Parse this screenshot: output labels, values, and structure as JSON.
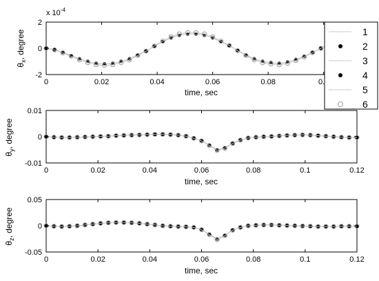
{
  "chart_data": [
    {
      "type": "scatter",
      "xlabel": "time, sec",
      "ylabel": "θx, degree",
      "ylabel_main": "θ",
      "ylabel_sub": "x",
      "ylabel_rest": ", degree",
      "exponent": "x 10⁻⁴",
      "exponent_text": "x 10",
      "exponent_power": "-4",
      "xlim": [
        0,
        0.112
      ],
      "ylim": [
        -2,
        2
      ],
      "xticks": [
        0,
        0.02,
        0.04,
        0.06,
        0.08,
        0.1
      ],
      "xtick_labels": [
        "0",
        "0.02",
        "0.04",
        "0.06",
        "0.08",
        "0.1"
      ],
      "yticks": [
        -2,
        0,
        2
      ],
      "ytick_labels": [
        "-2",
        "0",
        "2"
      ],
      "x": [
        0,
        0.003,
        0.006,
        0.009,
        0.012,
        0.015,
        0.018,
        0.021,
        0.024,
        0.027,
        0.03,
        0.033,
        0.036,
        0.039,
        0.042,
        0.045,
        0.048,
        0.051,
        0.054,
        0.057,
        0.06,
        0.063,
        0.066,
        0.069,
        0.072,
        0.075,
        0.078,
        0.081,
        0.084,
        0.087,
        0.09,
        0.093,
        0.096,
        0.099,
        0.102,
        0.105,
        0.108,
        0.111
      ],
      "series": [
        {
          "values": [
            0,
            -0.1,
            -0.3,
            -0.55,
            -0.8,
            -1.0,
            -1.15,
            -1.2,
            -1.15,
            -1.0,
            -0.8,
            -0.5,
            -0.2,
            0.15,
            0.5,
            0.8,
            1.0,
            1.1,
            1.1,
            1.0,
            0.8,
            0.5,
            0.2,
            -0.15,
            -0.5,
            -0.8,
            -1.0,
            -1.1,
            -1.15,
            -1.05,
            -0.85,
            -0.6,
            -0.3,
            0.0,
            0.3,
            0.55,
            0.8,
            1.0
          ]
        },
        {
          "values": [
            0,
            -0.1,
            -0.3,
            -0.55,
            -0.8,
            -1.0,
            -1.15,
            -1.2,
            -1.15,
            -1.0,
            -0.8,
            -0.5,
            -0.2,
            0.15,
            0.5,
            0.8,
            1.0,
            1.1,
            1.1,
            1.0,
            0.8,
            0.5,
            0.2,
            -0.15,
            -0.5,
            -0.8,
            -1.0,
            -1.1,
            -1.15,
            -1.05,
            -0.85,
            -0.6,
            -0.3,
            0.0,
            0.3,
            0.55,
            0.8,
            1.0
          ]
        },
        {
          "values": [
            0,
            -0.1,
            -0.3,
            -0.55,
            -0.8,
            -1.0,
            -1.15,
            -1.2,
            -1.15,
            -1.0,
            -0.8,
            -0.5,
            -0.2,
            0.15,
            0.5,
            0.8,
            1.0,
            1.1,
            1.1,
            1.0,
            0.8,
            0.5,
            0.2,
            -0.15,
            -0.5,
            -0.8,
            -1.0,
            -1.1,
            -1.15,
            -1.05,
            -0.85,
            -0.6,
            -0.3,
            0.0,
            0.3,
            0.55,
            0.8,
            1.0
          ]
        },
        {
          "values": [
            0,
            -0.1,
            -0.3,
            -0.55,
            -0.8,
            -1.0,
            -1.15,
            -1.2,
            -1.15,
            -1.0,
            -0.8,
            -0.5,
            -0.2,
            0.15,
            0.5,
            0.8,
            1.0,
            1.1,
            1.1,
            1.0,
            0.8,
            0.5,
            0.2,
            -0.15,
            -0.5,
            -0.8,
            -1.0,
            -1.1,
            -1.15,
            -1.05,
            -0.85,
            -0.6,
            -0.3,
            0.0,
            0.3,
            0.55,
            0.8,
            1.0
          ]
        },
        {
          "values": [
            0,
            -0.12,
            -0.35,
            -0.6,
            -0.88,
            -1.1,
            -1.25,
            -1.3,
            -1.25,
            -1.1,
            -0.88,
            -0.55,
            -0.22,
            0.18,
            0.55,
            0.88,
            1.1,
            1.2,
            1.2,
            1.1,
            0.88,
            0.55,
            0.22,
            -0.18,
            -0.55,
            -0.88,
            -1.1,
            -1.2,
            -1.25,
            -1.15,
            -0.93,
            -0.66,
            -0.33,
            0.0,
            0.33,
            0.6,
            0.88,
            1.1
          ]
        },
        {
          "values": [
            0,
            -0.12,
            -0.35,
            -0.6,
            -0.88,
            -1.1,
            -1.25,
            -1.3,
            -1.25,
            -1.1,
            -0.88,
            -0.55,
            -0.22,
            0.18,
            0.55,
            0.88,
            1.1,
            1.2,
            1.2,
            1.1,
            0.88,
            0.55,
            0.22,
            -0.18,
            -0.55,
            -0.88,
            -1.1,
            -1.2,
            -1.25,
            -1.15,
            -0.93,
            -0.66,
            -0.33,
            0.0,
            0.33,
            0.6,
            0.88,
            1.1
          ]
        }
      ]
    },
    {
      "type": "scatter",
      "xlabel": "time, sec",
      "ylabel": "θy, degree",
      "ylabel_main": "θ",
      "ylabel_sub": "y",
      "ylabel_rest": ", degree",
      "xlim": [
        0,
        0.12
      ],
      "ylim": [
        -0.01,
        0.01
      ],
      "xticks": [
        0,
        0.02,
        0.04,
        0.06,
        0.08,
        0.1,
        0.12
      ],
      "xtick_labels": [
        "0",
        "0.02",
        "0.04",
        "0.06",
        "0.08",
        "0.1",
        "0.12"
      ],
      "yticks": [
        -0.01,
        0,
        0.01
      ],
      "ytick_labels": [
        "-0.01",
        "0",
        "0.01"
      ],
      "x": [
        0,
        0.003,
        0.006,
        0.009,
        0.012,
        0.015,
        0.018,
        0.021,
        0.024,
        0.027,
        0.03,
        0.033,
        0.036,
        0.039,
        0.042,
        0.045,
        0.048,
        0.051,
        0.054,
        0.057,
        0.06,
        0.063,
        0.066,
        0.069,
        0.072,
        0.075,
        0.078,
        0.081,
        0.084,
        0.087,
        0.09,
        0.093,
        0.096,
        0.099,
        0.102,
        0.105,
        0.108,
        0.111,
        0.114,
        0.117,
        0.12
      ],
      "series": [
        {
          "values": [
            0,
            -0.0002,
            -0.0003,
            -0.0003,
            -0.0002,
            -0.0001,
            0.0,
            0.0001,
            0.0002,
            0.0004,
            0.0005,
            0.0006,
            0.0007,
            0.0008,
            0.0009,
            0.0009,
            0.0008,
            0.0006,
            0.0002,
            -0.0006,
            -0.0015,
            -0.0032,
            -0.005,
            -0.0042,
            -0.0025,
            -0.0012,
            -0.0005,
            -0.0002,
            0.0,
            0.0001,
            0.0003,
            0.0005,
            0.0006,
            0.0007,
            0.0006,
            0.0004,
            0.0002,
            0.0,
            -0.0002,
            -0.0003,
            -0.0003
          ]
        },
        {
          "values": [
            0,
            -0.0002,
            -0.0003,
            -0.0003,
            -0.0002,
            -0.0001,
            0.0,
            0.0001,
            0.0002,
            0.0004,
            0.0005,
            0.0006,
            0.0007,
            0.0008,
            0.0009,
            0.0009,
            0.0008,
            0.0006,
            0.0002,
            -0.0006,
            -0.0015,
            -0.0032,
            -0.005,
            -0.0042,
            -0.0025,
            -0.0012,
            -0.0005,
            -0.0002,
            0.0,
            0.0001,
            0.0003,
            0.0005,
            0.0006,
            0.0007,
            0.0006,
            0.0004,
            0.0002,
            0.0,
            -0.0002,
            -0.0003,
            -0.0003
          ]
        },
        {
          "values": [
            0,
            -0.0002,
            -0.0003,
            -0.0003,
            -0.0002,
            -0.0001,
            0.0,
            0.0001,
            0.0002,
            0.0004,
            0.0005,
            0.0006,
            0.0007,
            0.0008,
            0.0009,
            0.0009,
            0.0008,
            0.0006,
            0.0002,
            -0.0006,
            -0.0015,
            -0.0032,
            -0.005,
            -0.0042,
            -0.0025,
            -0.0012,
            -0.0005,
            -0.0002,
            0.0,
            0.0001,
            0.0003,
            0.0005,
            0.0006,
            0.0007,
            0.0006,
            0.0004,
            0.0002,
            0.0,
            -0.0002,
            -0.0003,
            -0.0003
          ]
        },
        {
          "values": [
            0,
            -0.0002,
            -0.0003,
            -0.0003,
            -0.0002,
            -0.0001,
            0.0,
            0.0001,
            0.0002,
            0.0004,
            0.0005,
            0.0006,
            0.0007,
            0.0008,
            0.0009,
            0.0009,
            0.0008,
            0.0006,
            0.0002,
            -0.0006,
            -0.0015,
            -0.0032,
            -0.005,
            -0.0042,
            -0.0025,
            -0.0012,
            -0.0005,
            -0.0002,
            0.0,
            0.0001,
            0.0003,
            0.0005,
            0.0006,
            0.0007,
            0.0006,
            0.0004,
            0.0002,
            0.0,
            -0.0002,
            -0.0003,
            -0.0003
          ]
        },
        {
          "values": [
            0,
            -0.0002,
            -0.0003,
            -0.0003,
            -0.0002,
            -0.0001,
            0.0,
            0.0001,
            0.0002,
            0.0004,
            0.0005,
            0.0006,
            0.0007,
            0.0008,
            0.0009,
            0.0009,
            0.0008,
            0.0006,
            0.0002,
            -0.0006,
            -0.0016,
            -0.0034,
            -0.0052,
            -0.0044,
            -0.0026,
            -0.0013,
            -0.0005,
            -0.0002,
            0.0,
            0.0001,
            0.0003,
            0.0005,
            0.0006,
            0.0007,
            0.0006,
            0.0004,
            0.0002,
            0.0,
            -0.0002,
            -0.0003,
            -0.0003
          ]
        },
        {
          "values": [
            0,
            -0.0002,
            -0.0003,
            -0.0003,
            -0.0002,
            -0.0001,
            0.0,
            0.0001,
            0.0002,
            0.0004,
            0.0005,
            0.0006,
            0.0007,
            0.0008,
            0.0009,
            0.0009,
            0.0008,
            0.0006,
            0.0002,
            -0.0006,
            -0.0016,
            -0.0034,
            -0.0052,
            -0.0044,
            -0.0026,
            -0.0013,
            -0.0005,
            -0.0002,
            0.0,
            0.0001,
            0.0003,
            0.0005,
            0.0006,
            0.0007,
            0.0006,
            0.0004,
            0.0002,
            0.0,
            -0.0002,
            -0.0003,
            -0.0003
          ]
        }
      ]
    },
    {
      "type": "scatter",
      "xlabel": "time, sec",
      "ylabel": "θz, degree",
      "ylabel_main": "θ",
      "ylabel_sub": "z",
      "ylabel_rest": ", degree",
      "xlim": [
        0,
        0.12
      ],
      "ylim": [
        -0.05,
        0.05
      ],
      "xticks": [
        0,
        0.02,
        0.04,
        0.06,
        0.08,
        0.1,
        0.12
      ],
      "xtick_labels": [
        "0",
        "0.02",
        "0.04",
        "0.06",
        "0.08",
        "0.1",
        "0.12"
      ],
      "yticks": [
        -0.05,
        0,
        0.05
      ],
      "ytick_labels": [
        "-0.05",
        "0",
        "0.05"
      ],
      "x": [
        0,
        0.003,
        0.006,
        0.009,
        0.012,
        0.015,
        0.018,
        0.021,
        0.024,
        0.027,
        0.03,
        0.033,
        0.036,
        0.039,
        0.042,
        0.045,
        0.048,
        0.051,
        0.054,
        0.057,
        0.06,
        0.063,
        0.066,
        0.069,
        0.072,
        0.075,
        0.078,
        0.081,
        0.084,
        0.087,
        0.09,
        0.093,
        0.096,
        0.099,
        0.102,
        0.105,
        0.108,
        0.111,
        0.114,
        0.117,
        0.12
      ],
      "series": [
        {
          "values": [
            0,
            -0.001,
            -0.0015,
            -0.001,
            0.0,
            0.0015,
            0.003,
            0.0045,
            0.0055,
            0.006,
            0.006,
            0.0055,
            0.0045,
            0.003,
            0.0015,
            0.0,
            -0.001,
            -0.0015,
            -0.002,
            -0.003,
            -0.007,
            -0.016,
            -0.025,
            -0.018,
            -0.008,
            -0.003,
            0.0,
            0.001,
            0.0015,
            0.0015,
            0.001,
            0.0005,
            0.0,
            -0.0005,
            -0.001,
            -0.0015,
            -0.0015,
            -0.0015,
            -0.001,
            -0.001,
            -0.001
          ]
        },
        {
          "values": [
            0,
            -0.001,
            -0.0015,
            -0.001,
            0.0,
            0.0015,
            0.003,
            0.0045,
            0.0055,
            0.006,
            0.006,
            0.0055,
            0.0045,
            0.003,
            0.0015,
            0.0,
            -0.001,
            -0.0015,
            -0.002,
            -0.003,
            -0.007,
            -0.016,
            -0.025,
            -0.018,
            -0.008,
            -0.003,
            0.0,
            0.001,
            0.0015,
            0.0015,
            0.001,
            0.0005,
            0.0,
            -0.0005,
            -0.001,
            -0.0015,
            -0.0015,
            -0.0015,
            -0.001,
            -0.001,
            -0.001
          ]
        },
        {
          "values": [
            0,
            -0.001,
            -0.0015,
            -0.001,
            0.0,
            0.0015,
            0.003,
            0.0045,
            0.0055,
            0.006,
            0.006,
            0.0055,
            0.0045,
            0.003,
            0.0015,
            0.0,
            -0.001,
            -0.0015,
            -0.002,
            -0.003,
            -0.007,
            -0.016,
            -0.025,
            -0.018,
            -0.008,
            -0.003,
            0.0,
            0.001,
            0.0015,
            0.0015,
            0.001,
            0.0005,
            0.0,
            -0.0005,
            -0.001,
            -0.0015,
            -0.0015,
            -0.0015,
            -0.001,
            -0.001,
            -0.001
          ]
        },
        {
          "values": [
            0,
            -0.001,
            -0.0015,
            -0.001,
            0.0,
            0.0015,
            0.003,
            0.0045,
            0.0055,
            0.006,
            0.006,
            0.0055,
            0.0045,
            0.003,
            0.0015,
            0.0,
            -0.001,
            -0.0015,
            -0.002,
            -0.003,
            -0.007,
            -0.016,
            -0.025,
            -0.018,
            -0.008,
            -0.003,
            0.0,
            0.001,
            0.0015,
            0.0015,
            0.001,
            0.0005,
            0.0,
            -0.0005,
            -0.001,
            -0.0015,
            -0.0015,
            -0.0015,
            -0.001,
            -0.001,
            -0.001
          ]
        },
        {
          "values": [
            0,
            -0.001,
            -0.0015,
            -0.001,
            0.0,
            0.0016,
            0.0032,
            0.0047,
            0.0057,
            0.0062,
            0.0062,
            0.0057,
            0.0047,
            0.0032,
            0.0016,
            0.0,
            -0.001,
            -0.0015,
            -0.002,
            -0.0032,
            -0.0075,
            -0.017,
            -0.0265,
            -0.019,
            -0.0085,
            -0.0032,
            0.0,
            0.001,
            0.0015,
            0.0015,
            0.001,
            0.0005,
            0.0,
            -0.0005,
            -0.001,
            -0.0015,
            -0.0015,
            -0.0015,
            -0.001,
            -0.001,
            -0.001
          ]
        },
        {
          "values": [
            0,
            -0.001,
            -0.0015,
            -0.001,
            0.0,
            0.0016,
            0.0032,
            0.0047,
            0.0057,
            0.0062,
            0.0062,
            0.0057,
            0.0047,
            0.0032,
            0.0016,
            0.0,
            -0.001,
            -0.0015,
            -0.002,
            -0.0032,
            -0.0075,
            -0.017,
            -0.0265,
            -0.019,
            -0.0085,
            -0.0032,
            0.0,
            0.001,
            0.0015,
            0.0015,
            0.001,
            0.0005,
            0.0,
            -0.0005,
            -0.001,
            -0.0015,
            -0.0015,
            -0.0015,
            -0.001,
            -0.001,
            -0.001
          ]
        }
      ]
    }
  ],
  "legend": {
    "entries": [
      {
        "label": "1",
        "marker": "line",
        "color": "#c8c8c8"
      },
      {
        "label": "2",
        "marker": "filled-dot",
        "color": "#000000"
      },
      {
        "label": "3",
        "marker": "line",
        "color": "#c8c8c8"
      },
      {
        "label": "4",
        "marker": "filled-dot",
        "color": "#000000"
      },
      {
        "label": "5",
        "marker": "line",
        "color": "#c8c8c8"
      },
      {
        "label": "6",
        "marker": "open-circle",
        "color": "#9a9a9a"
      }
    ],
    "placement": "right of top panel"
  }
}
